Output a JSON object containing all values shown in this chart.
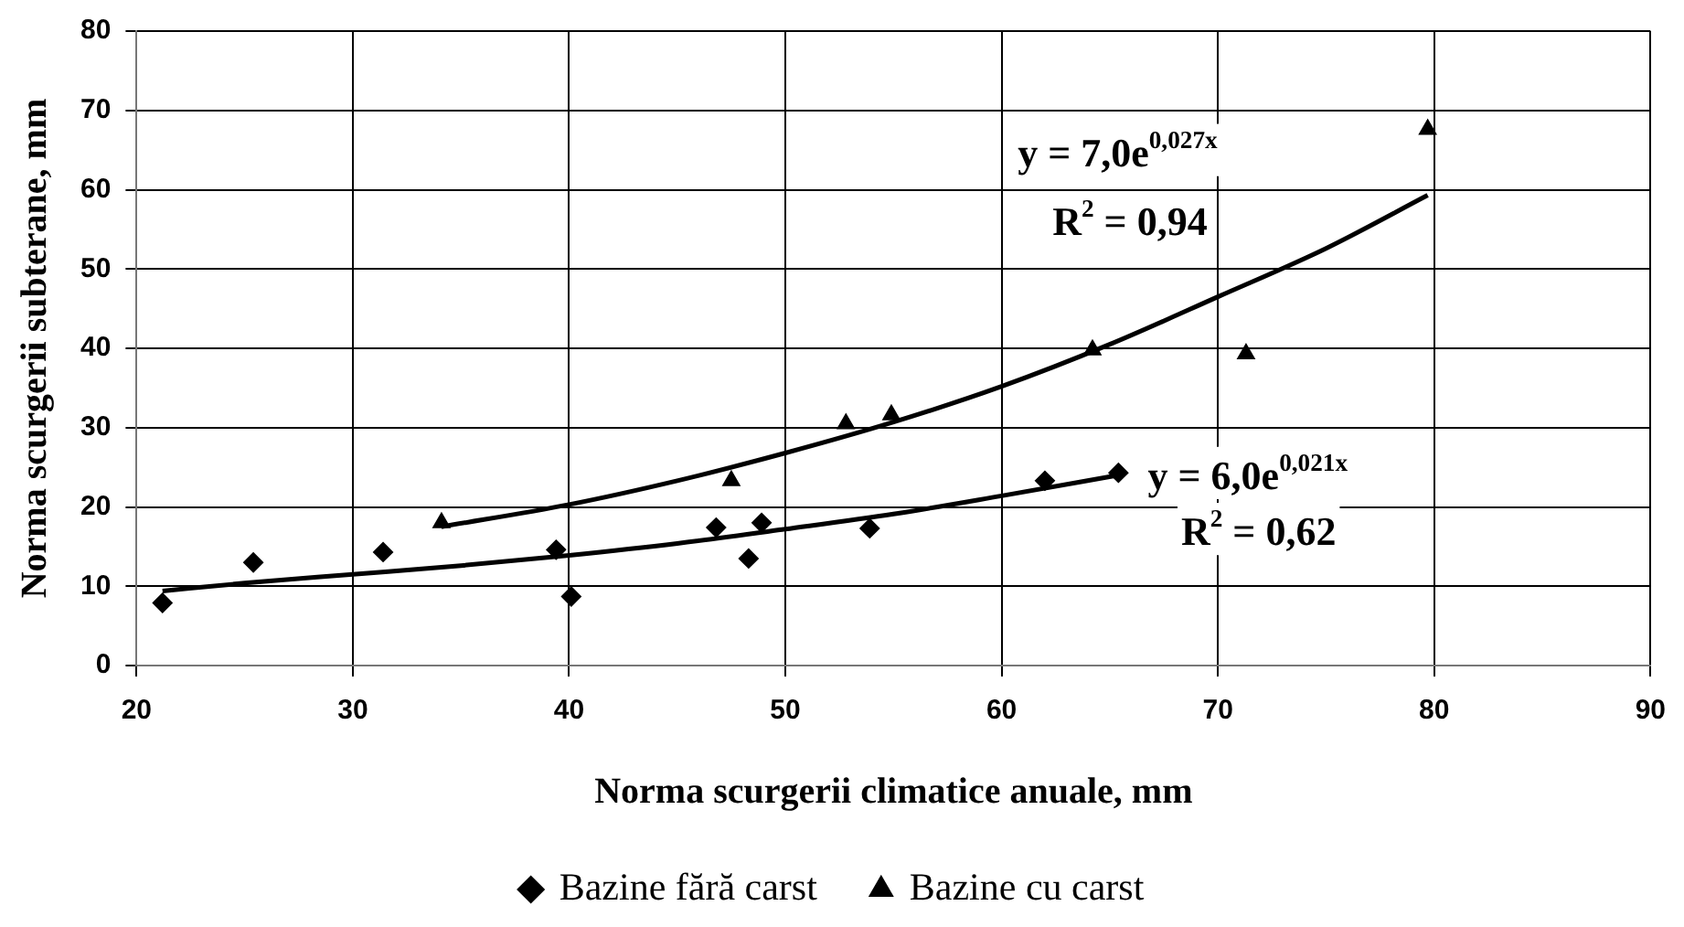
{
  "chart_data": {
    "type": "scatter",
    "xlabel": "Norma scurgerii climatice anuale, mm",
    "ylabel": "Norma scurgerii subterane, mm",
    "xlim": [
      20,
      90
    ],
    "xticks": [
      20,
      30,
      40,
      50,
      60,
      70,
      80,
      90
    ],
    "ylim": [
      0,
      80
    ],
    "yticks": [
      0,
      10,
      20,
      30,
      40,
      50,
      60,
      70,
      80
    ],
    "grid": true,
    "legend": "bottom",
    "series": [
      {
        "name": "Bazine fără carst",
        "type": "scatter",
        "marker": "diamond",
        "color": "#000000",
        "x": [
          21.2,
          25.4,
          31.4,
          39.4,
          40.1,
          46.8,
          48.3,
          48.9,
          53.9,
          62,
          65.4
        ],
        "values": [
          7.9,
          13,
          14.3,
          14.6,
          8.7,
          17.4,
          13.5,
          18,
          17.3,
          23.3,
          24.3
        ]
      },
      {
        "name": "Bazine cu carst",
        "type": "scatter",
        "marker": "triangle",
        "color": "#000000",
        "x": [
          34.1,
          47.5,
          52.8,
          54.9,
          64.2,
          71.3,
          79.7
        ],
        "values": [
          18,
          23.3,
          30.5,
          31.6,
          39.8,
          39.3,
          67.6
        ]
      },
      {
        "type": "line",
        "marker": "none",
        "color": "#000000",
        "x": [
          21.2,
          25,
          30,
          35,
          40,
          45,
          50,
          55,
          60,
          65.4
        ],
        "values": [
          9.4,
          10.4,
          11.5,
          12.6,
          13.9,
          15.4,
          17.2,
          19.1,
          21.4,
          24
        ]
      },
      {
        "type": "line",
        "marker": "none",
        "color": "#000000",
        "x": [
          34.1,
          40,
          45,
          50,
          55,
          60,
          65,
          70,
          75,
          79.7
        ],
        "values": [
          17.5,
          20.3,
          23.3,
          26.8,
          30.7,
          35.2,
          40.5,
          46.5,
          52.6,
          59.3
        ]
      }
    ],
    "annotations": [
      "y = 7,0e$^{0,027x}$",
      "R$^{2}$ = 0,94",
      "y = 6,0e$^{0,021x}$",
      "R$^{2}$ = 0,62"
    ]
  }
}
